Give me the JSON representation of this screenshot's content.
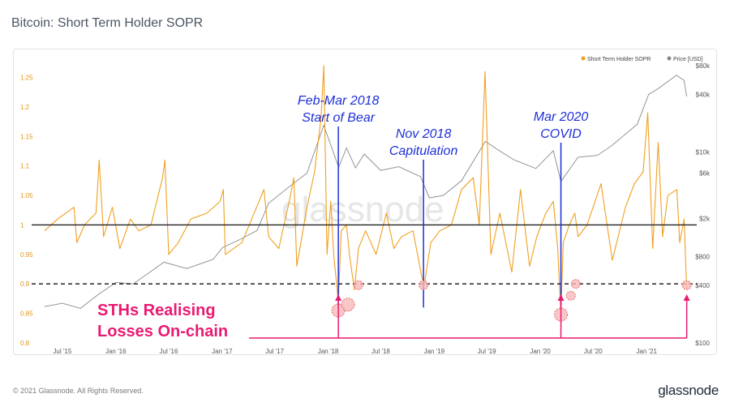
{
  "page": {
    "title": "Bitcoin: Short Term Holder SOPR",
    "footer_copyright": "© 2021 Glassnode. All Rights Reserved.",
    "footer_brand": "glassnode",
    "watermark": "glassnode"
  },
  "chart_data": {
    "type": "line",
    "title": "Bitcoin: Short Term Holder SOPR",
    "legend": [
      {
        "name": "Short Term Holder SOPR",
        "color": "#f0a020"
      },
      {
        "name": "Price [USD]",
        "color": "#888888"
      }
    ],
    "legend_position": "top-right",
    "x_ticks": [
      "Jul '15",
      "Jan '16",
      "Jul '16",
      "Jan '17",
      "Jul '17",
      "Jan '18",
      "Jul '18",
      "Jan '19",
      "Jul '19",
      "Jan '20",
      "Jul '20",
      "Jan '21"
    ],
    "x_range": [
      "2015-05-01",
      "2021-05-20"
    ],
    "y_left": {
      "ticks": [
        "0.8",
        "0.85",
        "0.9",
        "0.95",
        "1",
        "1.05",
        "1.1",
        "1.15",
        "1.2",
        "1.25"
      ],
      "range": [
        0.8,
        1.27
      ]
    },
    "y_right": {
      "scale": "log",
      "ticks": [
        "$100",
        "$400",
        "$800",
        "$2k",
        "$6k",
        "$10k",
        "$40k",
        "$80k"
      ],
      "range": [
        100,
        80000
      ]
    },
    "reference_lines": [
      {
        "label": "1",
        "value": 1.0,
        "style": "solid",
        "color": "#222222"
      },
      {
        "label": "0.9",
        "value": 0.9,
        "style": "dashed",
        "color": "#111111"
      }
    ],
    "series": [
      {
        "name": "Short Term Holder SOPR",
        "color": "#f0a020",
        "points": [
          [
            "2015-05-01",
            0.99
          ],
          [
            "2015-06-15",
            1.01
          ],
          [
            "2015-08-10",
            1.03
          ],
          [
            "2015-08-20",
            0.97
          ],
          [
            "2015-09-15",
            1.0
          ],
          [
            "2015-10-25",
            1.02
          ],
          [
            "2015-11-05",
            1.11
          ],
          [
            "2015-11-20",
            0.98
          ],
          [
            "2015-12-20",
            1.03
          ],
          [
            "2016-01-15",
            0.96
          ],
          [
            "2016-02-20",
            1.01
          ],
          [
            "2016-03-20",
            0.99
          ],
          [
            "2016-05-01",
            1.0
          ],
          [
            "2016-06-10",
            1.08
          ],
          [
            "2016-06-18",
            1.11
          ],
          [
            "2016-07-01",
            0.95
          ],
          [
            "2016-08-03",
            0.97
          ],
          [
            "2016-09-15",
            1.01
          ],
          [
            "2016-11-10",
            1.02
          ],
          [
            "2016-12-25",
            1.04
          ],
          [
            "2017-01-05",
            1.06
          ],
          [
            "2017-01-12",
            0.95
          ],
          [
            "2017-03-10",
            0.97
          ],
          [
            "2017-05-25",
            1.06
          ],
          [
            "2017-06-10",
            0.98
          ],
          [
            "2017-07-15",
            0.96
          ],
          [
            "2017-08-20",
            1.04
          ],
          [
            "2017-09-05",
            1.08
          ],
          [
            "2017-09-15",
            0.93
          ],
          [
            "2017-10-20",
            1.03
          ],
          [
            "2017-11-15",
            1.09
          ],
          [
            "2017-12-07",
            1.18
          ],
          [
            "2017-12-17",
            1.27
          ],
          [
            "2017-12-28",
            0.95
          ],
          [
            "2018-01-10",
            1.04
          ],
          [
            "2018-01-20",
            0.95
          ],
          [
            "2018-02-05",
            0.87
          ],
          [
            "2018-02-15",
            0.99
          ],
          [
            "2018-03-05",
            1.0
          ],
          [
            "2018-03-15",
            0.95
          ],
          [
            "2018-04-01",
            0.89
          ],
          [
            "2018-04-15",
            0.96
          ],
          [
            "2018-05-10",
            0.99
          ],
          [
            "2018-06-15",
            0.95
          ],
          [
            "2018-07-20",
            1.02
          ],
          [
            "2018-08-15",
            0.96
          ],
          [
            "2018-09-10",
            0.98
          ],
          [
            "2018-10-20",
            0.99
          ],
          [
            "2018-11-20",
            0.91
          ],
          [
            "2018-11-28",
            0.9
          ],
          [
            "2018-12-20",
            0.97
          ],
          [
            "2019-01-20",
            0.99
          ],
          [
            "2019-03-01",
            1.0
          ],
          [
            "2019-04-05",
            1.06
          ],
          [
            "2019-05-15",
            1.08
          ],
          [
            "2019-06-05",
            1.0
          ],
          [
            "2019-06-25",
            1.26
          ],
          [
            "2019-07-15",
            0.95
          ],
          [
            "2019-08-15",
            1.02
          ],
          [
            "2019-09-25",
            0.92
          ],
          [
            "2019-10-25",
            1.06
          ],
          [
            "2019-11-25",
            0.93
          ],
          [
            "2019-12-20",
            0.98
          ],
          [
            "2020-01-20",
            1.02
          ],
          [
            "2020-02-15",
            1.04
          ],
          [
            "2020-03-01",
            0.96
          ],
          [
            "2020-03-12",
            0.85
          ],
          [
            "2020-03-20",
            0.97
          ],
          [
            "2020-04-10",
            1.0
          ],
          [
            "2020-04-29",
            1.02
          ],
          [
            "2020-05-10",
            0.98
          ],
          [
            "2020-06-10",
            1.0
          ],
          [
            "2020-07-28",
            1.07
          ],
          [
            "2020-09-05",
            0.94
          ],
          [
            "2020-10-20",
            1.03
          ],
          [
            "2020-11-20",
            1.07
          ],
          [
            "2020-12-20",
            1.09
          ],
          [
            "2021-01-05",
            1.19
          ],
          [
            "2021-01-22",
            0.96
          ],
          [
            "2021-02-10",
            1.14
          ],
          [
            "2021-02-25",
            0.98
          ],
          [
            "2021-03-15",
            1.05
          ],
          [
            "2021-04-15",
            1.06
          ],
          [
            "2021-04-25",
            0.97
          ],
          [
            "2021-05-10",
            1.01
          ],
          [
            "2021-05-19",
            0.89
          ]
        ]
      },
      {
        "name": "Price [USD]",
        "color": "#888888",
        "axis": "right",
        "points": [
          [
            "2015-05-01",
            240
          ],
          [
            "2015-07-01",
            260
          ],
          [
            "2015-09-01",
            230
          ],
          [
            "2015-11-01",
            320
          ],
          [
            "2016-01-01",
            430
          ],
          [
            "2016-03-01",
            415
          ],
          [
            "2016-06-15",
            700
          ],
          [
            "2016-09-01",
            600
          ],
          [
            "2016-12-01",
            750
          ],
          [
            "2017-01-03",
            1000
          ],
          [
            "2017-03-01",
            1200
          ],
          [
            "2017-05-01",
            1500
          ],
          [
            "2017-06-10",
            2900
          ],
          [
            "2017-08-15",
            4200
          ],
          [
            "2017-10-20",
            6000
          ],
          [
            "2017-12-17",
            19000
          ],
          [
            "2018-02-06",
            6900
          ],
          [
            "2018-03-05",
            11000
          ],
          [
            "2018-04-05",
            6800
          ],
          [
            "2018-05-05",
            9500
          ],
          [
            "2018-07-01",
            6400
          ],
          [
            "2018-09-01",
            7000
          ],
          [
            "2018-11-15",
            5500
          ],
          [
            "2018-12-15",
            3300
          ],
          [
            "2019-02-01",
            3500
          ],
          [
            "2019-04-05",
            5000
          ],
          [
            "2019-06-26",
            12900
          ],
          [
            "2019-08-15",
            10200
          ],
          [
            "2019-10-01",
            8300
          ],
          [
            "2019-12-17",
            6700
          ],
          [
            "2020-02-15",
            10300
          ],
          [
            "2020-03-12",
            4900
          ],
          [
            "2020-05-10",
            8800
          ],
          [
            "2020-07-15",
            9200
          ],
          [
            "2020-09-01",
            11500
          ],
          [
            "2020-11-30",
            19500
          ],
          [
            "2021-01-08",
            40000
          ],
          [
            "2021-02-10",
            46000
          ],
          [
            "2021-04-14",
            63500
          ],
          [
            "2021-05-10",
            56000
          ],
          [
            "2021-05-19",
            38000
          ]
        ]
      }
    ],
    "annotations": [
      {
        "lines": [
          "Feb-Mar 2018",
          "Start of Bear"
        ],
        "date": "2018-02-05",
        "color": "#1d2fd6"
      },
      {
        "lines": [
          "Nov 2018",
          "Capitulation"
        ],
        "date": "2018-11-25",
        "color": "#1d2fd6"
      },
      {
        "lines": [
          "Mar 2020",
          "COVID"
        ],
        "date": "2020-03-12",
        "color": "#1d2fd6"
      }
    ],
    "callout": {
      "lines": [
        "STHs Realising",
        "Losses On-chain"
      ],
      "color": "#ea1a72",
      "arrow_dates": [
        "2018-02-05",
        "2020-03-12",
        "2021-05-19"
      ]
    },
    "highlight_markers": [
      {
        "date": "2018-02-05",
        "value": 0.855
      },
      {
        "date": "2018-03-10",
        "value": 0.865
      },
      {
        "date": "2018-04-15",
        "value": 0.898
      },
      {
        "date": "2018-11-25",
        "value": 0.898
      },
      {
        "date": "2020-03-12",
        "value": 0.848
      },
      {
        "date": "2020-04-15",
        "value": 0.88
      },
      {
        "date": "2020-05-02",
        "value": 0.9
      },
      {
        "date": "2021-05-19",
        "value": 0.898
      }
    ]
  }
}
